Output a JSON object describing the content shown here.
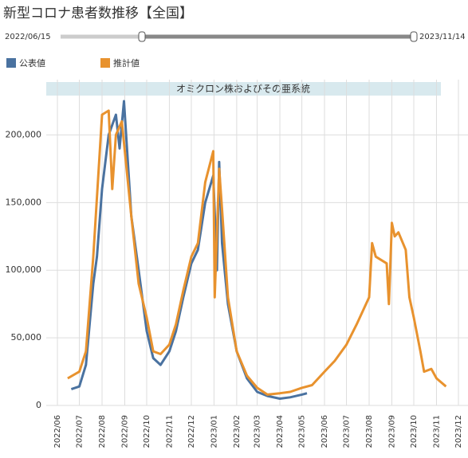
{
  "chart_data": {
    "type": "line",
    "title": "新型コロナ患者数推移【全国】",
    "range_start": "2022/06/15",
    "range_end": "2023/11/14",
    "annotation": "オミクロン株およびその亜系統",
    "xlim": [
      "2022/06",
      "2023/12"
    ],
    "xticks": [
      "2022/06",
      "2022/07",
      "2022/08",
      "2022/09",
      "2022/10",
      "2022/11",
      "2022/12",
      "2023/01",
      "2023/02",
      "2023/03",
      "2023/04",
      "2023/05",
      "2023/06",
      "2023/07",
      "2023/08",
      "2023/09",
      "2023/10",
      "2023/11",
      "2023/12"
    ],
    "ylim": [
      0,
      235000
    ],
    "yticks": [
      0,
      {
        "value": 50000,
        "label": "50,000"
      },
      {
        "value": 100000,
        "label": "100,000"
      },
      {
        "value": 150000,
        "label": "150,000"
      },
      {
        "value": 200000,
        "label": "200,000"
      }
    ],
    "grid": true,
    "series": [
      {
        "name": "公表値",
        "color": "#4a72a0",
        "x": [
          "2022/06/20",
          "2022/07/01",
          "2022/07/10",
          "2022/07/20",
          "2022/07/25",
          "2022/08/01",
          "2022/08/10",
          "2022/08/20",
          "2022/08/25",
          "2022/08/31",
          "2022/09/10",
          "2022/09/20",
          "2022/10/01",
          "2022/10/10",
          "2022/10/20",
          "2022/11/01",
          "2022/11/10",
          "2022/11/20",
          "2022/12/01",
          "2022/12/10",
          "2022/12/20",
          "2022/12/31",
          "2023/01/05",
          "2023/01/08",
          "2023/01/12",
          "2023/01/20",
          "2023/02/01",
          "2023/02/15",
          "2023/03/01",
          "2023/03/15",
          "2023/04/01",
          "2023/04/15",
          "2023/05/01",
          "2023/05/08"
        ],
        "values": [
          12000,
          14000,
          30000,
          90000,
          110000,
          160000,
          200000,
          215000,
          190000,
          225000,
          140000,
          100000,
          55000,
          35000,
          30000,
          40000,
          55000,
          80000,
          105000,
          115000,
          150000,
          170000,
          100000,
          180000,
          120000,
          75000,
          40000,
          20000,
          10000,
          7000,
          5000,
          6000,
          8000,
          9000
        ]
      },
      {
        "name": "推計値",
        "color": "#e8922e",
        "x": [
          "2022/06/15",
          "2022/07/01",
          "2022/07/10",
          "2022/07/20",
          "2022/08/01",
          "2022/08/10",
          "2022/08/15",
          "2022/08/20",
          "2022/08/28",
          "2022/09/10",
          "2022/09/20",
          "2022/10/01",
          "2022/10/10",
          "2022/10/20",
          "2022/11/01",
          "2022/11/10",
          "2022/11/20",
          "2022/12/01",
          "2022/12/10",
          "2022/12/20",
          "2022/12/31",
          "2023/01/02",
          "2023/01/08",
          "2023/01/12",
          "2023/01/20",
          "2023/02/01",
          "2023/02/15",
          "2023/03/01",
          "2023/03/15",
          "2023/04/01",
          "2023/04/15",
          "2023/05/01",
          "2023/05/15",
          "2023/06/01",
          "2023/06/15",
          "2023/07/01",
          "2023/07/15",
          "2023/08/01",
          "2023/08/05",
          "2023/08/10",
          "2023/08/25",
          "2023/08/28",
          "2023/09/01",
          "2023/09/05",
          "2023/09/10",
          "2023/09/20",
          "2023/09/25",
          "2023/10/01",
          "2023/10/10",
          "2023/10/15",
          "2023/10/25",
          "2023/11/01",
          "2023/11/14"
        ],
        "values": [
          20000,
          25000,
          40000,
          110000,
          215000,
          218000,
          160000,
          200000,
          210000,
          140000,
          90000,
          65000,
          40000,
          38000,
          45000,
          60000,
          85000,
          110000,
          120000,
          165000,
          188000,
          80000,
          175000,
          145000,
          80000,
          40000,
          22000,
          13000,
          8000,
          9000,
          10000,
          13000,
          15000,
          25000,
          33000,
          45000,
          60000,
          80000,
          120000,
          110000,
          105000,
          75000,
          135000,
          125000,
          128000,
          115000,
          80000,
          65000,
          40000,
          25000,
          27000,
          20000,
          14000
        ]
      }
    ]
  }
}
